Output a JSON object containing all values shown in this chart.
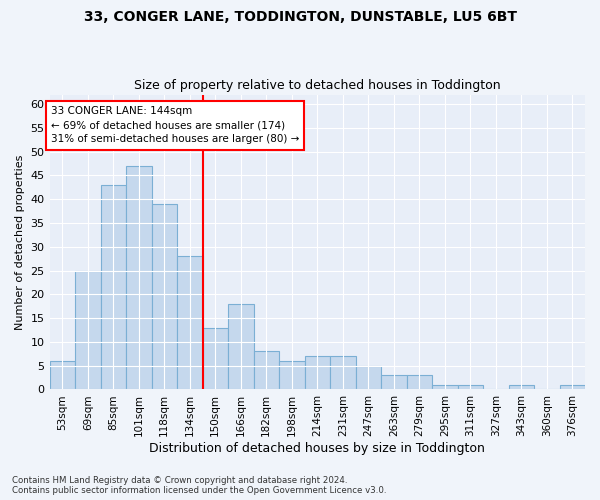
{
  "title_line1": "33, CONGER LANE, TODDINGTON, DUNSTABLE, LU5 6BT",
  "title_line2": "Size of property relative to detached houses in Toddington",
  "xlabel": "Distribution of detached houses by size in Toddington",
  "ylabel": "Number of detached properties",
  "categories": [
    "53sqm",
    "69sqm",
    "85sqm",
    "101sqm",
    "118sqm",
    "134sqm",
    "150sqm",
    "166sqm",
    "182sqm",
    "198sqm",
    "214sqm",
    "231sqm",
    "247sqm",
    "263sqm",
    "279sqm",
    "295sqm",
    "311sqm",
    "327sqm",
    "343sqm",
    "360sqm",
    "376sqm"
  ],
  "values": [
    6,
    25,
    43,
    47,
    39,
    28,
    13,
    18,
    8,
    6,
    7,
    7,
    5,
    3,
    3,
    1,
    1,
    0,
    1,
    0,
    1
  ],
  "bar_color": "#c5d8ed",
  "bar_edge_color": "#7bafd4",
  "ylim": [
    0,
    62
  ],
  "yticks": [
    0,
    5,
    10,
    15,
    20,
    25,
    30,
    35,
    40,
    45,
    50,
    55,
    60
  ],
  "property_line_x": 5.5,
  "property_line_color": "red",
  "annotation_text": "33 CONGER LANE: 144sqm\n← 69% of detached houses are smaller (174)\n31% of semi-detached houses are larger (80) →",
  "annotation_box_color": "white",
  "annotation_box_edge": "red",
  "footnote1": "Contains HM Land Registry data © Crown copyright and database right 2024.",
  "footnote2": "Contains public sector information licensed under the Open Government Licence v3.0.",
  "background_color": "#f0f4fa",
  "plot_background": "#e8eef8",
  "title1_fontsize": 10,
  "title2_fontsize": 9,
  "ylabel_fontsize": 8,
  "xlabel_fontsize": 9,
  "tick_fontsize": 8,
  "xtick_fontsize": 7.5
}
